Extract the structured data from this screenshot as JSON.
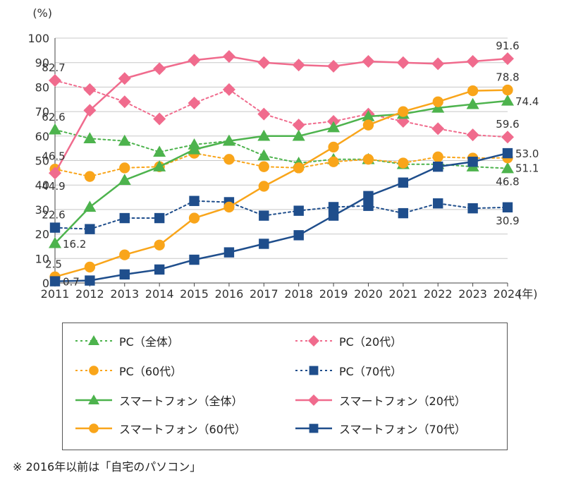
{
  "colors": {
    "green": "#4db34d",
    "pink": "#f06b8d",
    "orange": "#f9a51a",
    "navy": "#1f4e8c",
    "grid": "#c8c8c8",
    "axis": "#444444"
  },
  "chart_data": {
    "type": "line",
    "ylabel": "(%)",
    "xunit": "(年)",
    "x": [
      "2011",
      "2012",
      "2013",
      "2014",
      "2015",
      "2016",
      "2017",
      "2018",
      "2019",
      "2020",
      "2021",
      "2022",
      "2023",
      "2024"
    ],
    "ylim": [
      0,
      100
    ],
    "yticks": [
      "0",
      "10",
      "20",
      "30",
      "40",
      "50",
      "60",
      "70",
      "80",
      "90",
      "100"
    ],
    "grid": true,
    "legend_position": "bottom",
    "series": [
      {
        "name": "PC（全体）",
        "color": "#4db34d",
        "marker": "triangle",
        "style": "dotted",
        "values": [
          62.6,
          59,
          58,
          53.5,
          56.5,
          58,
          52,
          49,
          50.5,
          50.5,
          48.5,
          48.5,
          47.5,
          46.8
        ]
      },
      {
        "name": "PC（20代）",
        "color": "#f06b8d",
        "marker": "diamond",
        "style": "dotted",
        "values": [
          82.7,
          79,
          74,
          67,
          73.5,
          79,
          69,
          64.5,
          66,
          69,
          66,
          63,
          60.5,
          59.6
        ]
      },
      {
        "name": "PC（60代）",
        "color": "#f9a51a",
        "marker": "circle",
        "style": "dotted",
        "values": [
          46.5,
          43.5,
          47,
          47.5,
          53,
          50.5,
          47.5,
          47,
          49.5,
          50.5,
          49,
          51.5,
          51,
          51.1
        ]
      },
      {
        "name": "PC（70代）",
        "color": "#1f4e8c",
        "marker": "square",
        "style": "dotted",
        "values": [
          22.6,
          22,
          26.5,
          26.5,
          33.5,
          33,
          27.5,
          29.5,
          31,
          31.5,
          28.5,
          32.5,
          30.5,
          30.9
        ]
      },
      {
        "name": "スマートフォン（全体）",
        "color": "#4db34d",
        "marker": "triangle",
        "style": "solid",
        "values": [
          16.2,
          31,
          42,
          47.5,
          54.5,
          58,
          60,
          60,
          63.5,
          68,
          69,
          71.5,
          73,
          74.4
        ]
      },
      {
        "name": "スマートフォン（20代）",
        "color": "#f06b8d",
        "marker": "diamond",
        "style": "solid",
        "values": [
          44.9,
          70.5,
          83.5,
          87.5,
          91,
          92.5,
          90,
          89,
          88.5,
          90.5,
          90,
          89.5,
          90.5,
          91.6
        ]
      },
      {
        "name": "スマートフォン（60代）",
        "color": "#f9a51a",
        "marker": "circle",
        "style": "solid",
        "values": [
          2.5,
          6.5,
          11.5,
          15.5,
          26.5,
          31,
          39.5,
          47,
          55.5,
          64.5,
          70,
          74,
          78.5,
          78.8
        ]
      },
      {
        "name": "スマートフォン（70代）",
        "color": "#1f4e8c",
        "marker": "square",
        "style": "solid",
        "values": [
          0.7,
          1,
          3.5,
          5.5,
          9.5,
          12.5,
          16,
          19.5,
          27.5,
          35.5,
          41,
          47.5,
          49.5,
          53.0
        ]
      }
    ],
    "annotations": [
      {
        "text": "82.7",
        "series": 1,
        "index": 0,
        "place": "above"
      },
      {
        "text": "62.6",
        "series": 0,
        "index": 0,
        "place": "above"
      },
      {
        "text": "46.5",
        "series": 2,
        "index": 0,
        "place": "above"
      },
      {
        "text": "44.9",
        "series": 5,
        "index": 0,
        "place": "below"
      },
      {
        "text": "22.6",
        "series": 3,
        "index": 0,
        "place": "above"
      },
      {
        "text": "16.2",
        "series": 4,
        "index": 0,
        "place": "right"
      },
      {
        "text": "2.5",
        "series": 6,
        "index": 0,
        "place": "above"
      },
      {
        "text": "0.7",
        "series": 7,
        "index": 0,
        "place": "right"
      },
      {
        "text": "91.6",
        "series": 5,
        "index": 13,
        "place": "above"
      },
      {
        "text": "78.8",
        "series": 6,
        "index": 13,
        "place": "above"
      },
      {
        "text": "74.4",
        "series": 4,
        "index": 13,
        "place": "right"
      },
      {
        "text": "59.6",
        "series": 1,
        "index": 13,
        "place": "above"
      },
      {
        "text": "53.0",
        "series": 7,
        "index": 13,
        "place": "right"
      },
      {
        "text": "51.1",
        "series": 2,
        "index": 13,
        "place": "right-below"
      },
      {
        "text": "46.8",
        "series": 0,
        "index": 13,
        "place": "below"
      },
      {
        "text": "30.9",
        "series": 3,
        "index": 13,
        "place": "below"
      }
    ]
  },
  "legend": [
    {
      "label": "PC（全体）",
      "color": "#4db34d",
      "marker": "triangle",
      "style": "dotted"
    },
    {
      "label": "PC（20代）",
      "color": "#f06b8d",
      "marker": "diamond",
      "style": "dotted"
    },
    {
      "label": "PC（60代）",
      "color": "#f9a51a",
      "marker": "circle",
      "style": "dotted"
    },
    {
      "label": "PC（70代）",
      "color": "#1f4e8c",
      "marker": "square",
      "style": "dotted"
    },
    {
      "label": "スマートフォン（全体）",
      "color": "#4db34d",
      "marker": "triangle",
      "style": "solid"
    },
    {
      "label": "スマートフォン（20代）",
      "color": "#f06b8d",
      "marker": "diamond",
      "style": "solid"
    },
    {
      "label": "スマートフォン（60代）",
      "color": "#f9a51a",
      "marker": "circle",
      "style": "solid"
    },
    {
      "label": "スマートフォン（70代）",
      "color": "#1f4e8c",
      "marker": "square",
      "style": "solid"
    }
  ],
  "footnote": "※  2016年以前は「自宅のパソコン」"
}
